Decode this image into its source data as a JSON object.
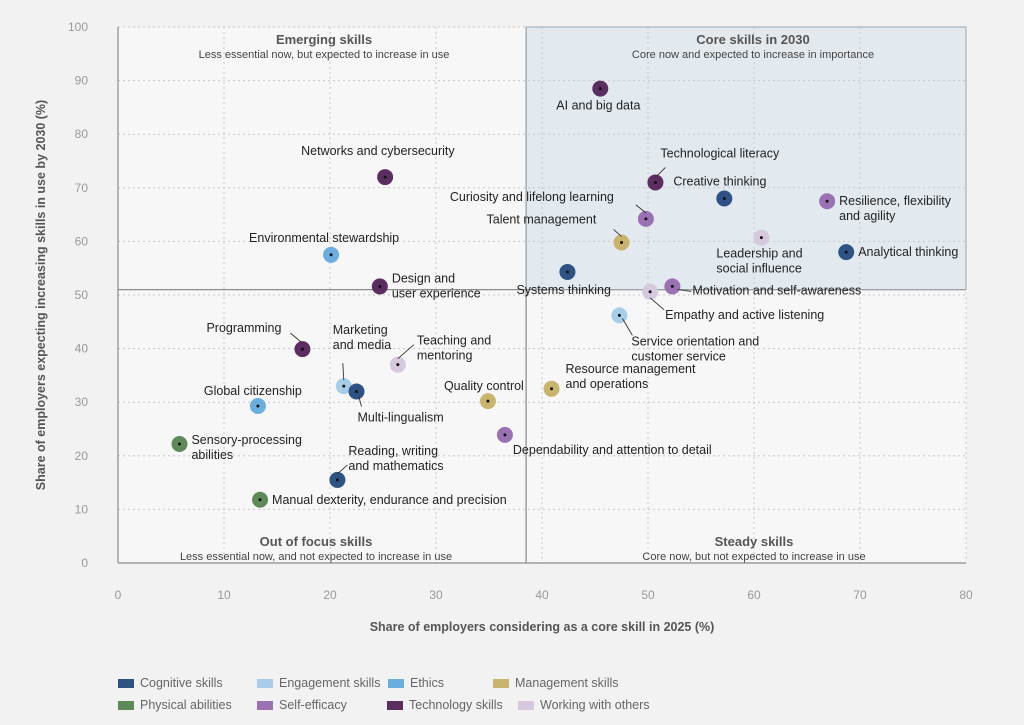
{
  "chart_data": {
    "type": "scatter",
    "xlabel": "Share of employers considering as a core skill in 2025 (%)",
    "ylabel": "Share of employers expecting increasing skills in use by 2030 (%)",
    "xlim": [
      0,
      80
    ],
    "ylim": [
      0,
      100
    ],
    "xticks": [
      0,
      10,
      20,
      30,
      40,
      50,
      60,
      70,
      80
    ],
    "yticks": [
      0,
      10,
      20,
      30,
      40,
      50,
      60,
      70,
      80,
      90,
      100
    ],
    "grid": true,
    "divider": {
      "x": 38.5,
      "y": 51
    },
    "quadrants": {
      "top_left": {
        "title": "Emerging skills",
        "subtitle": "Less essential now, but expected to increase in use"
      },
      "top_right": {
        "title": "Core skills in 2030",
        "subtitle": "Core now and expected to increase in importance"
      },
      "bottom_left": {
        "title": "Out of focus skills",
        "subtitle": "Less essential now, and not expected to increase in use"
      },
      "bottom_right": {
        "title": "Steady skills",
        "subtitle": "Core now, but not expected to increase in use"
      }
    },
    "categories": [
      {
        "name": "Cognitive skills",
        "color": "#2e5283"
      },
      {
        "name": "Engagement skills",
        "color": "#a8cde8"
      },
      {
        "name": "Ethics",
        "color": "#6aaee0"
      },
      {
        "name": "Management skills",
        "color": "#c9b46e"
      },
      {
        "name": "Physical abilities",
        "color": "#5e8a5a"
      },
      {
        "name": "Self-efficacy",
        "color": "#9a72b4"
      },
      {
        "name": "Technology skills",
        "color": "#5b2d61"
      },
      {
        "name": "Working with others",
        "color": "#d6c8dd"
      }
    ],
    "points": [
      {
        "label": "AI and big data",
        "x": 45.5,
        "y": 88.5,
        "cat": "Technology skills"
      },
      {
        "label": "Networks and cybersecurity",
        "x": 25.2,
        "y": 72,
        "cat": "Technology skills"
      },
      {
        "label": "Technological literacy",
        "x": 50.7,
        "y": 71,
        "cat": "Technology skills"
      },
      {
        "label": "Creative thinking",
        "x": 57.2,
        "y": 68,
        "cat": "Cognitive skills"
      },
      {
        "label": "Resilience, flexibility and agility",
        "x": 66.9,
        "y": 67.5,
        "cat": "Self-efficacy"
      },
      {
        "label": "Curiosity and lifelong learning",
        "x": 49.8,
        "y": 64.2,
        "cat": "Self-efficacy"
      },
      {
        "label": "Talent management",
        "x": 47.5,
        "y": 59.8,
        "cat": "Management skills"
      },
      {
        "label": "Leadership and social influence",
        "x": 60.7,
        "y": 60.7,
        "cat": "Working with others"
      },
      {
        "label": "Analytical thinking",
        "x": 68.7,
        "y": 58,
        "cat": "Cognitive skills"
      },
      {
        "label": "Environmental stewardship",
        "x": 20.1,
        "y": 57.5,
        "cat": "Ethics"
      },
      {
        "label": "Systems thinking",
        "x": 42.4,
        "y": 54.3,
        "cat": "Cognitive skills"
      },
      {
        "label": "Design and user experience",
        "x": 24.7,
        "y": 51.6,
        "cat": "Technology skills"
      },
      {
        "label": "Motivation and self-awareness",
        "x": 52.3,
        "y": 51.6,
        "cat": "Self-efficacy"
      },
      {
        "label": "Empathy and active listening",
        "x": 50.2,
        "y": 50.6,
        "cat": "Working with others"
      },
      {
        "label": "Service orientation and customer service",
        "x": 47.3,
        "y": 46.2,
        "cat": "Engagement skills"
      },
      {
        "label": "Programming",
        "x": 17.4,
        "y": 39.9,
        "cat": "Technology skills"
      },
      {
        "label": "Marketing and media",
        "x": 21.3,
        "y": 33,
        "cat": "Engagement skills"
      },
      {
        "label": "Teaching and mentoring",
        "x": 26.4,
        "y": 37,
        "cat": "Working with others"
      },
      {
        "label": "Multi-lingualism",
        "x": 22.5,
        "y": 32,
        "cat": "Cognitive skills"
      },
      {
        "label": "Global citizenship",
        "x": 13.2,
        "y": 29.3,
        "cat": "Ethics"
      },
      {
        "label": "Quality control",
        "x": 34.9,
        "y": 30.2,
        "cat": "Management skills"
      },
      {
        "label": "Resource management and operations",
        "x": 40.9,
        "y": 32.5,
        "cat": "Management skills"
      },
      {
        "label": "Dependability and attention to detail",
        "x": 36.5,
        "y": 23.9,
        "cat": "Self-efficacy"
      },
      {
        "label": "Sensory-processing abilities",
        "x": 5.8,
        "y": 22.2,
        "cat": "Physical abilities"
      },
      {
        "label": "Reading, writing and mathematics",
        "x": 20.7,
        "y": 15.5,
        "cat": "Cognitive skills"
      },
      {
        "label": "Manual dexterity, endurance and precision",
        "x": 13.4,
        "y": 11.8,
        "cat": "Physical abilities"
      }
    ]
  }
}
